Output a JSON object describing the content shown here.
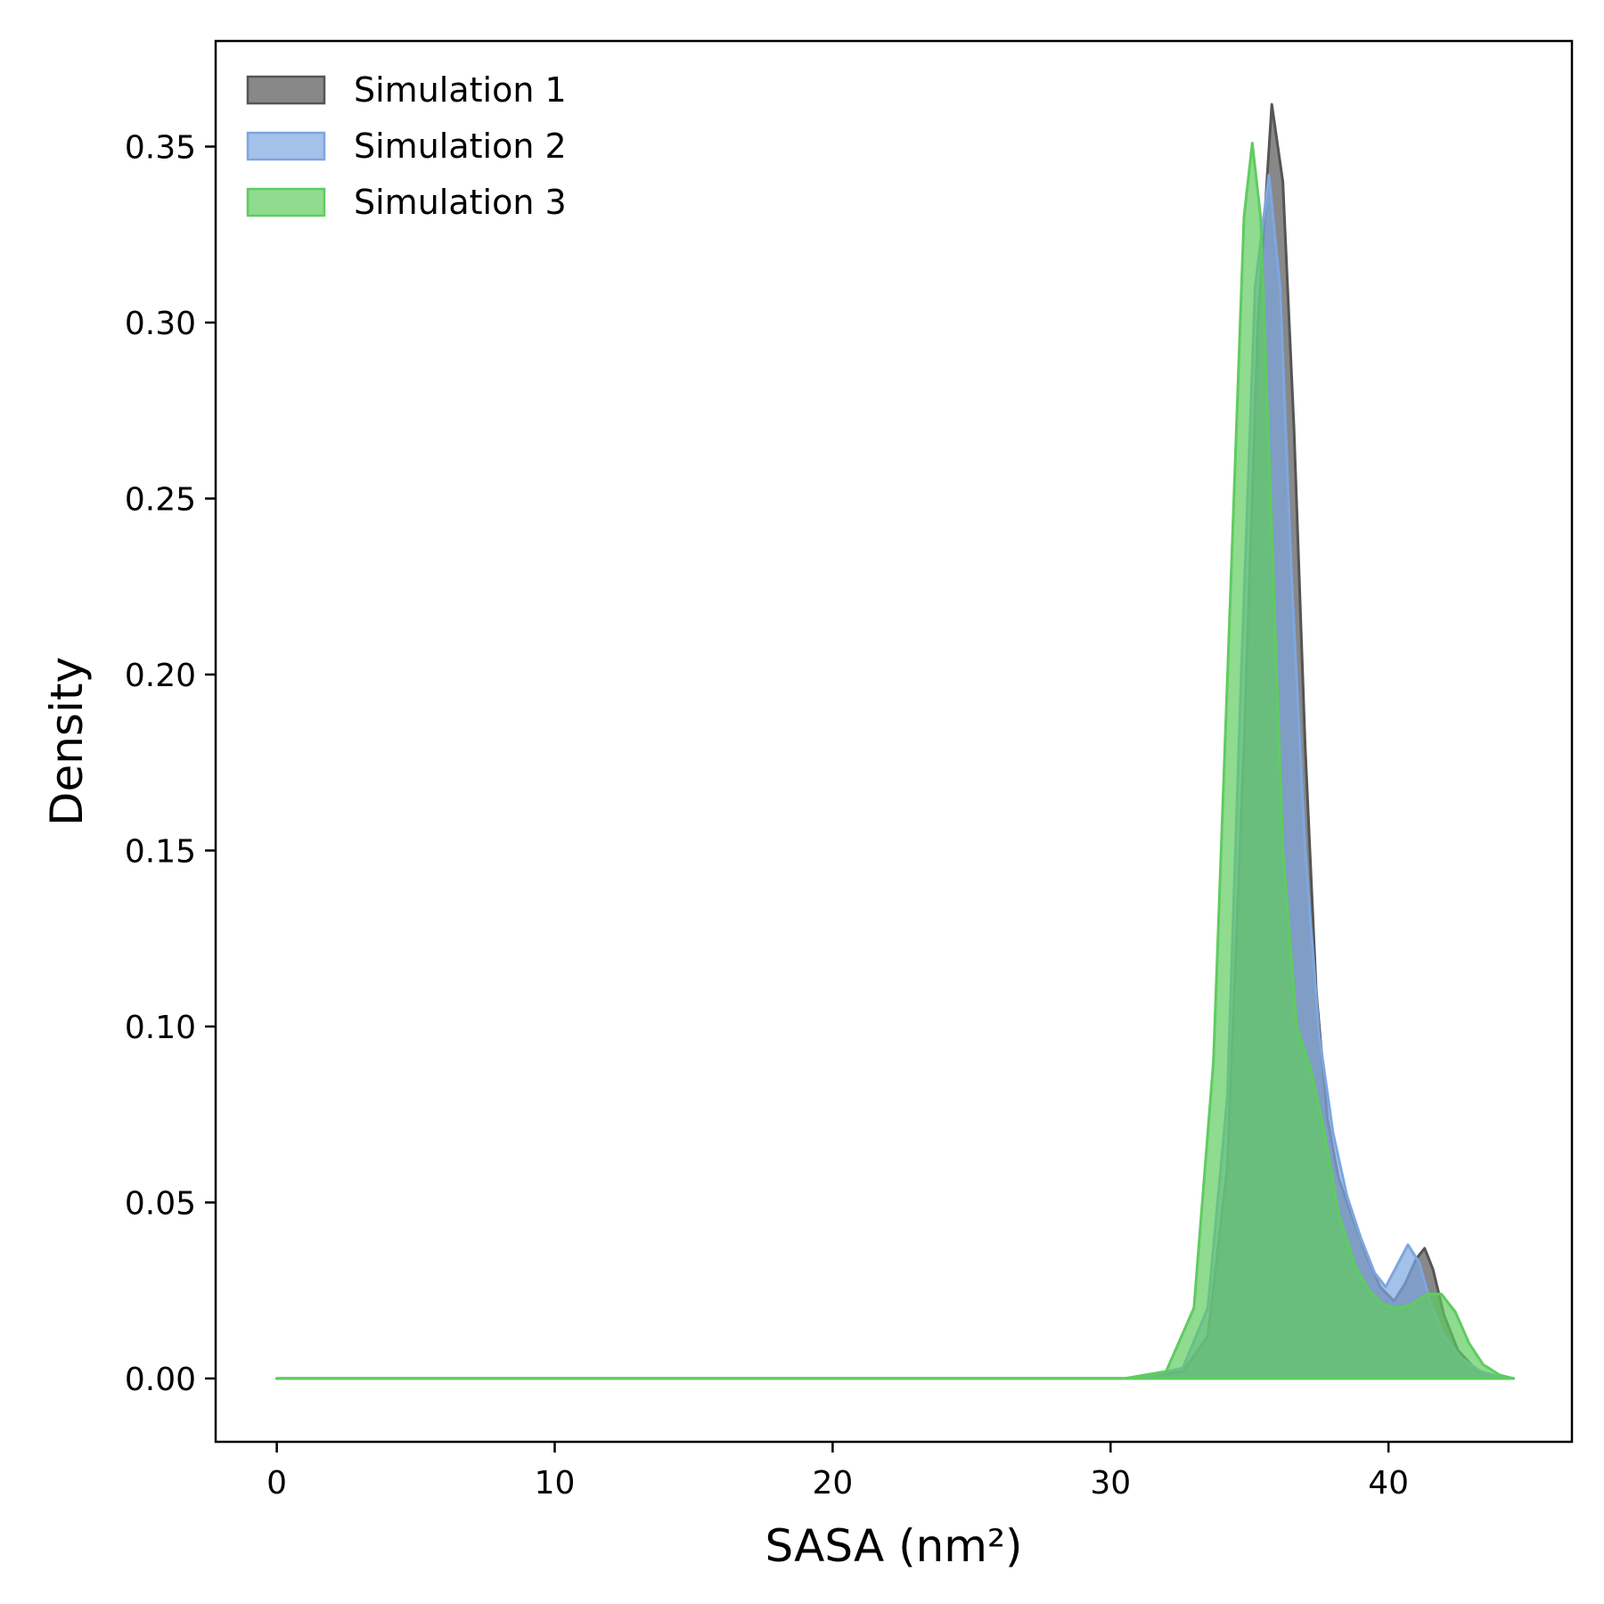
{
  "chart_data": {
    "type": "area",
    "xlabel": "SASA (nm²)",
    "ylabel": "Density",
    "xlim": [
      -2.2,
      46.6
    ],
    "ylim": [
      -0.018,
      0.38
    ],
    "xticks": [
      "0",
      "10",
      "20",
      "30",
      "40"
    ],
    "xtick_values": [
      0,
      10,
      20,
      30,
      40
    ],
    "yticks": [
      "0.00",
      "0.05",
      "0.10",
      "0.15",
      "0.20",
      "0.25",
      "0.30",
      "0.35"
    ],
    "ytick_values": [
      0.0,
      0.05,
      0.1,
      0.15,
      0.2,
      0.25,
      0.3,
      0.35
    ],
    "legend_position": "top-left",
    "grid": false,
    "fill_alpha": 0.7,
    "series": [
      {
        "name": "Simulation 1",
        "color": "#555555",
        "x": [
          0,
          31.0,
          32.6,
          33.5,
          34.2,
          34.8,
          35.3,
          35.8,
          36.2,
          36.6,
          37.0,
          37.4,
          37.8,
          38.2,
          38.6,
          39.2,
          39.7,
          40.2,
          40.6,
          41.0,
          41.3,
          41.6,
          42.0,
          42.5,
          43.2,
          44.0,
          44.5
        ],
        "y": [
          0,
          0,
          0.002,
          0.012,
          0.06,
          0.18,
          0.3,
          0.362,
          0.34,
          0.27,
          0.18,
          0.11,
          0.074,
          0.057,
          0.048,
          0.035,
          0.026,
          0.022,
          0.027,
          0.034,
          0.037,
          0.031,
          0.018,
          0.008,
          0.002,
          0.0005,
          0
        ]
      },
      {
        "name": "Simulation 2",
        "color": "#7ea6e0",
        "x": [
          0,
          31.0,
          32.6,
          33.5,
          34.2,
          34.7,
          35.2,
          35.7,
          36.1,
          36.5,
          37.0,
          37.5,
          38.0,
          38.5,
          39.0,
          39.5,
          39.9,
          40.3,
          40.7,
          41.1,
          41.5,
          42.0,
          42.6,
          43.3,
          44.0,
          44.5
        ],
        "y": [
          0,
          0,
          0.003,
          0.02,
          0.08,
          0.2,
          0.31,
          0.342,
          0.31,
          0.23,
          0.15,
          0.098,
          0.07,
          0.052,
          0.04,
          0.03,
          0.026,
          0.032,
          0.038,
          0.033,
          0.022,
          0.012,
          0.006,
          0.002,
          0.0005,
          0
        ]
      },
      {
        "name": "Simulation 3",
        "color": "#5fcc5f",
        "x": [
          0,
          30.5,
          32.0,
          33.0,
          33.7,
          34.3,
          34.8,
          35.1,
          35.4,
          35.8,
          36.2,
          36.7,
          37.2,
          37.7,
          38.2,
          38.8,
          39.3,
          39.8,
          40.3,
          40.8,
          41.4,
          41.9,
          42.4,
          42.9,
          43.4,
          44.0,
          44.5
        ],
        "y": [
          0,
          0,
          0.002,
          0.02,
          0.09,
          0.22,
          0.33,
          0.351,
          0.33,
          0.24,
          0.15,
          0.1,
          0.088,
          0.07,
          0.047,
          0.032,
          0.025,
          0.021,
          0.02,
          0.021,
          0.024,
          0.024,
          0.019,
          0.01,
          0.004,
          0.001,
          0
        ]
      }
    ]
  }
}
